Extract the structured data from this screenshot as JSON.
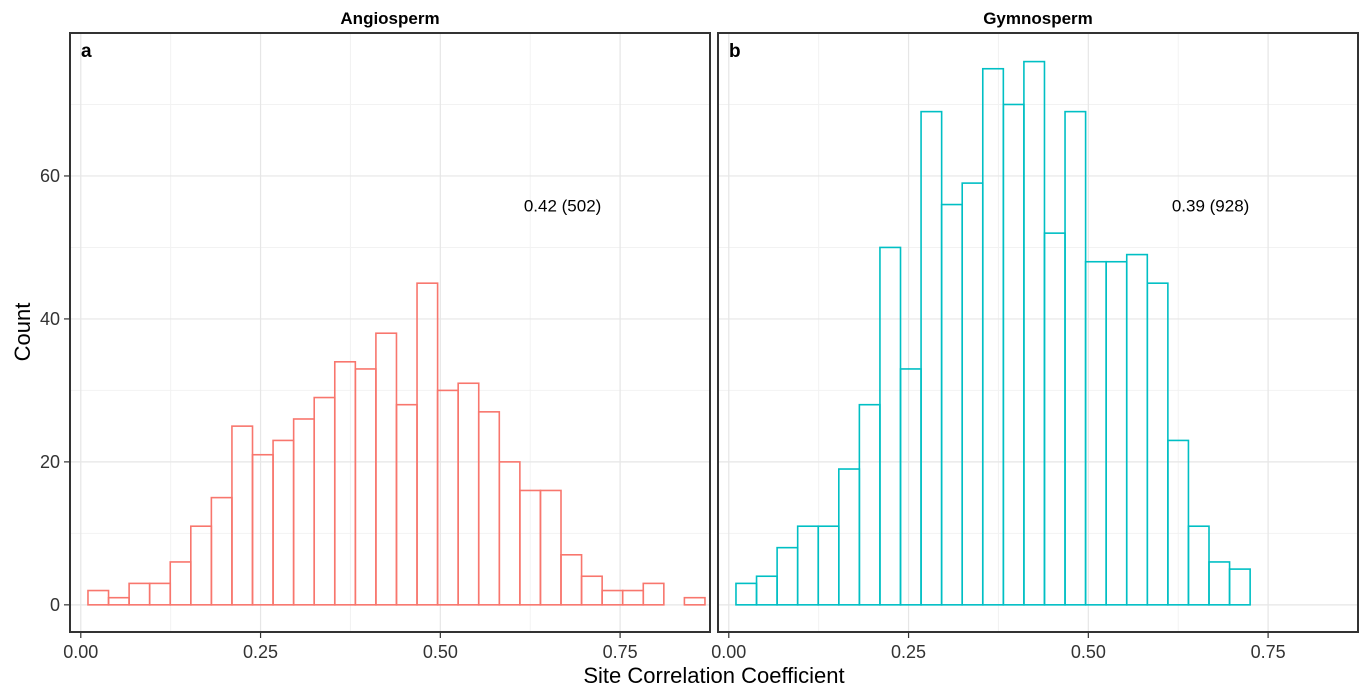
{
  "chart_data": {
    "type": "bar",
    "xlabel": "Site Correlation Coefficient",
    "ylabel": "Count",
    "xlim": [
      -0.015,
      0.875
    ],
    "ylim": [
      -3.8,
      80
    ],
    "xticks": [
      "0.00",
      "0.25",
      "0.50",
      "0.75"
    ],
    "xtick_values": [
      0,
      0.25,
      0.5,
      0.75
    ],
    "yticks": [
      "0",
      "20",
      "40",
      "60"
    ],
    "ytick_values": [
      0,
      20,
      40,
      60
    ],
    "grid": true,
    "bin_width": 0.0286,
    "first_bin_left": 0.01,
    "panels": [
      {
        "title": "Angiosperm",
        "letter": "a",
        "annotation": "0.42 (502)",
        "annotation_x": 0.67,
        "annotation_y": 55,
        "color": "#F8766D",
        "values": [
          2,
          1,
          3,
          3,
          6,
          11,
          15,
          25,
          21,
          23,
          26,
          29,
          34,
          33,
          38,
          28,
          45,
          30,
          31,
          27,
          20,
          16,
          16,
          7,
          4,
          2,
          2,
          3,
          0,
          1
        ]
      },
      {
        "title": "Gymnosperm",
        "letter": "b",
        "annotation": "0.39 (928)",
        "annotation_x": 0.67,
        "annotation_y": 55,
        "color": "#00BFC4",
        "values": [
          3,
          4,
          8,
          11,
          11,
          19,
          28,
          50,
          33,
          69,
          56,
          59,
          75,
          70,
          76,
          52,
          69,
          48,
          48,
          49,
          45,
          23,
          11,
          6,
          5,
          0,
          0,
          0,
          0,
          0
        ]
      }
    ]
  }
}
